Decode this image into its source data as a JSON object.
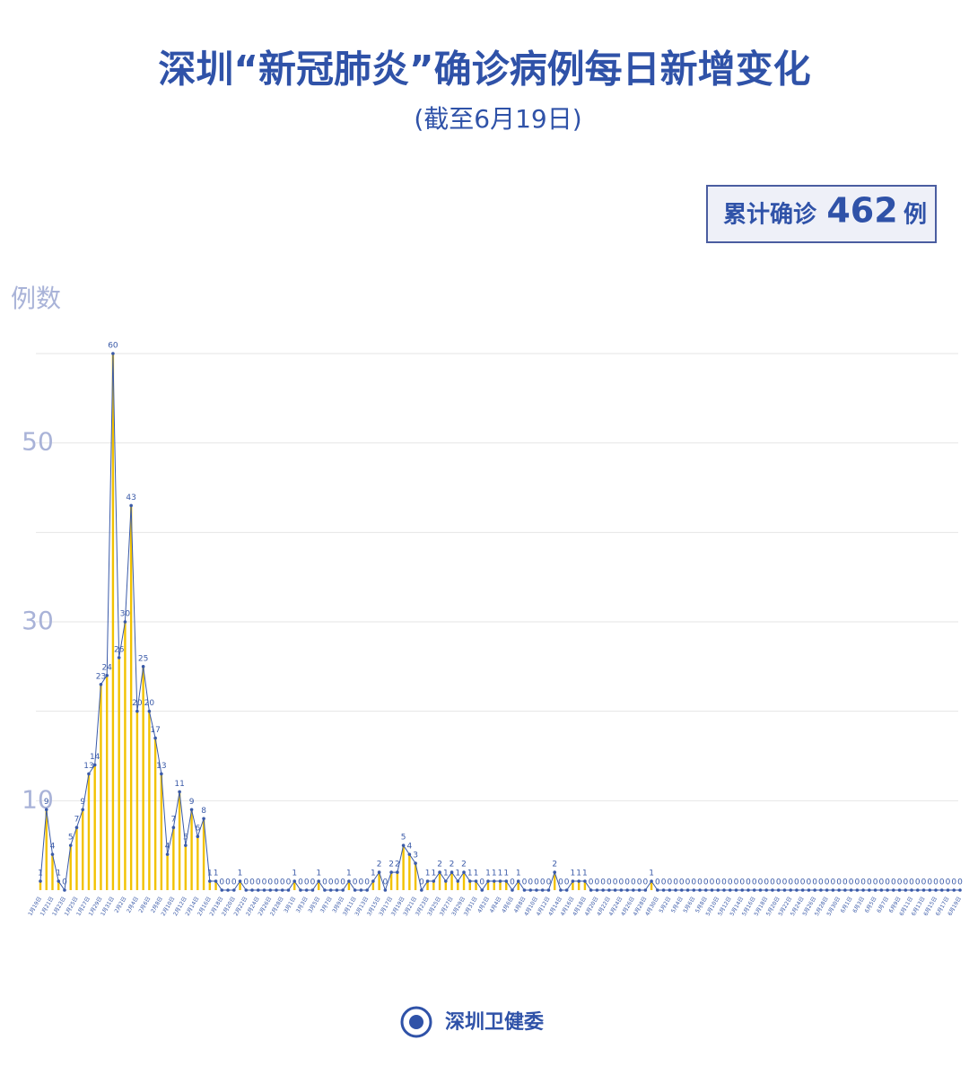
{
  "chart_data": {
    "type": "line",
    "title": "深圳“新冠肺炎”确诊病例每日新增变化",
    "subtitle": "(截至6月19日)",
    "total_prefix": "累计确诊",
    "total": 462,
    "total_suffix": "例",
    "ylabel": "例数",
    "source": "深圳卫健委",
    "color": "#3a5aa8",
    "fill_color": "#f2c200",
    "ylim": [
      0,
      60
    ],
    "yticks": [
      10,
      30,
      50
    ],
    "ygrid": [
      10,
      20,
      30,
      40,
      50,
      60
    ],
    "categories": [
      "1月19日",
      null,
      "1月21日",
      null,
      "1月23日",
      null,
      "1月25日",
      null,
      "1月27日",
      null,
      "1月29日",
      null,
      "1月31日",
      null,
      "2月2日",
      null,
      "2月4日",
      null,
      "2月6日",
      null,
      "2月8日",
      null,
      "2月10日",
      null,
      "2月12日",
      null,
      "2月14日",
      null,
      "2月16日",
      null,
      "2月18日",
      null,
      "2月20日",
      null,
      "2月22日",
      null,
      "2月24日",
      null,
      "2月26日",
      null,
      "2月28日",
      null,
      "3月1日",
      null,
      "3月3日",
      null,
      "3月5日",
      null,
      "3月7日",
      null,
      "3月9日",
      null,
      "3月11日",
      null,
      "3月13日",
      null,
      "3月15日",
      null,
      "3月17日",
      null,
      "3月19日",
      null,
      "3月21日",
      null,
      "3月23日",
      null,
      "3月25日",
      null,
      "3月27日",
      null,
      "3月29日",
      null,
      "3月31日",
      null,
      "4月2日",
      null,
      "4月4日",
      null,
      "4月6日",
      null,
      "4月8日",
      null,
      "4月10日",
      null,
      "4月12日",
      null,
      "4月14日",
      null,
      "4月16日",
      null,
      "4月18日",
      null,
      "4月20日",
      null,
      "4月22日",
      null,
      "4月24日",
      null,
      "4月26日",
      null,
      "4月28日",
      null,
      "4月30日",
      null,
      "5月2日",
      null,
      "5月4日",
      null,
      "5月6日",
      null,
      "5月8日",
      null,
      "5月10日",
      null,
      "5月12日",
      null,
      "5月14日",
      null,
      "5月16日",
      null,
      "5月18日",
      null,
      "5月20日",
      null,
      "5月22日",
      null,
      "5月24日",
      null,
      "5月26日",
      null,
      "5月28日",
      null,
      "5月30日",
      null,
      "6月1日",
      null,
      "6月3日",
      null,
      "6月5日",
      null,
      "6月7日",
      null,
      "6月9日",
      null,
      "6月11日",
      null,
      "6月13日",
      null,
      "6月15日",
      null,
      "6月17日",
      null,
      "6月19日"
    ],
    "values": [
      1,
      9,
      4,
      1,
      0,
      5,
      7,
      9,
      13,
      14,
      23,
      24,
      60,
      26,
      30,
      43,
      20,
      25,
      20,
      17,
      13,
      4,
      7,
      11,
      5,
      9,
      6,
      8,
      1,
      1,
      0,
      0,
      0,
      1,
      0,
      0,
      0,
      0,
      0,
      0,
      0,
      0,
      1,
      0,
      0,
      0,
      1,
      0,
      0,
      0,
      0,
      1,
      0,
      0,
      0,
      1,
      2,
      0,
      2,
      2,
      5,
      4,
      3,
      0,
      1,
      1,
      2,
      1,
      2,
      1,
      2,
      1,
      1,
      0,
      1,
      1,
      1,
      1,
      0,
      1,
      0,
      0,
      0,
      0,
      0,
      2,
      0,
      0,
      1,
      1,
      1,
      0,
      0,
      0,
      0,
      0,
      0,
      0,
      0,
      0,
      0,
      1,
      0,
      0,
      0,
      0,
      0,
      0,
      0,
      0,
      0,
      0,
      0,
      0,
      0,
      0,
      0,
      0,
      0,
      0,
      0,
      0,
      0,
      0,
      0,
      0,
      0,
      0,
      0,
      0,
      0,
      0,
      0,
      0,
      0,
      0,
      0,
      0,
      0,
      0,
      0,
      0,
      0,
      0,
      0,
      0,
      0,
      0,
      0,
      0,
      0,
      0,
      0
    ]
  }
}
